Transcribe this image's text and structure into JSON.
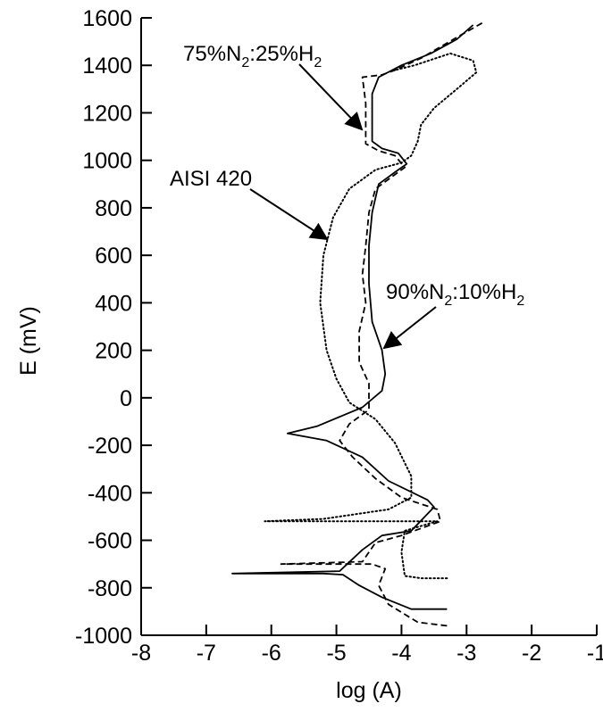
{
  "chart_data": {
    "type": "line",
    "title": "",
    "xlabel": "log (A)",
    "ylabel": "E (mV)",
    "xlim": [
      -8,
      -1
    ],
    "ylim": [
      -1000,
      1600
    ],
    "x_ticks": [
      "-8",
      "-7",
      "-6",
      "-5",
      "-4",
      "-3",
      "-2",
      "-1"
    ],
    "y_ticks": [
      "-1000",
      "-800",
      "-600",
      "-400",
      "-200",
      "0",
      "200",
      "400",
      "600",
      "800",
      "1000",
      "1200",
      "1400",
      "1600"
    ],
    "grid": false,
    "legend": "none",
    "series": [
      {
        "name": "AISI 420",
        "style": "dotted",
        "points": [
          [
            -3.3,
            -760
          ],
          [
            -3.7,
            -760
          ],
          [
            -3.95,
            -750
          ],
          [
            -4.0,
            -650
          ],
          [
            -3.95,
            -560
          ],
          [
            -3.45,
            -520
          ],
          [
            -4.7,
            -520
          ],
          [
            -6.1,
            -520
          ],
          [
            -5.2,
            -510
          ],
          [
            -4.2,
            -470
          ],
          [
            -3.85,
            -420
          ],
          [
            -3.85,
            -330
          ],
          [
            -4.1,
            -190
          ],
          [
            -4.4,
            -90
          ],
          [
            -4.8,
            -20
          ],
          [
            -5.0,
            80
          ],
          [
            -5.15,
            200
          ],
          [
            -5.25,
            400
          ],
          [
            -5.2,
            600
          ],
          [
            -5.05,
            760
          ],
          [
            -4.8,
            880
          ],
          [
            -4.4,
            960
          ],
          [
            -4.0,
            990
          ],
          [
            -3.85,
            1020
          ],
          [
            -3.75,
            1080
          ],
          [
            -3.7,
            1150
          ],
          [
            -3.5,
            1220
          ],
          [
            -3.15,
            1300
          ],
          [
            -2.85,
            1370
          ],
          [
            -2.9,
            1420
          ],
          [
            -3.25,
            1450
          ],
          [
            -3.8,
            1400
          ],
          [
            -4.1,
            1380
          ]
        ]
      },
      {
        "name": "75%N2:25%H2",
        "style": "dashed",
        "points": [
          [
            -3.3,
            -960
          ],
          [
            -3.75,
            -945
          ],
          [
            -4.2,
            -870
          ],
          [
            -4.35,
            -790
          ],
          [
            -4.25,
            -720
          ],
          [
            -4.45,
            -700
          ],
          [
            -5.85,
            -700
          ],
          [
            -4.6,
            -690
          ],
          [
            -4.4,
            -610
          ],
          [
            -4.0,
            -580
          ],
          [
            -3.4,
            -520
          ],
          [
            -3.45,
            -470
          ],
          [
            -4.0,
            -420
          ],
          [
            -4.4,
            -340
          ],
          [
            -4.75,
            -250
          ],
          [
            -4.95,
            -180
          ],
          [
            -4.8,
            -110
          ],
          [
            -4.5,
            -50
          ],
          [
            -4.5,
            60
          ],
          [
            -4.65,
            150
          ],
          [
            -4.65,
            280
          ],
          [
            -4.55,
            400
          ],
          [
            -4.6,
            520
          ],
          [
            -4.55,
            640
          ],
          [
            -4.5,
            780
          ],
          [
            -4.4,
            880
          ],
          [
            -4.15,
            930
          ],
          [
            -3.95,
            970
          ],
          [
            -4.1,
            1020
          ],
          [
            -4.35,
            1040
          ],
          [
            -4.55,
            1070
          ],
          [
            -4.55,
            1240
          ],
          [
            -4.6,
            1350
          ],
          [
            -4.3,
            1360
          ],
          [
            -4.1,
            1380
          ],
          [
            -3.7,
            1430
          ],
          [
            -3.2,
            1510
          ],
          [
            -2.75,
            1580
          ]
        ]
      },
      {
        "name": "90%N2:10%H2",
        "style": "solid",
        "points": [
          [
            -3.3,
            -890
          ],
          [
            -3.85,
            -890
          ],
          [
            -4.3,
            -840
          ],
          [
            -4.65,
            -790
          ],
          [
            -4.9,
            -745
          ],
          [
            -5.2,
            -740
          ],
          [
            -6.6,
            -740
          ],
          [
            -4.95,
            -730
          ],
          [
            -4.6,
            -640
          ],
          [
            -4.3,
            -580
          ],
          [
            -3.85,
            -560
          ],
          [
            -3.5,
            -460
          ],
          [
            -3.6,
            -430
          ],
          [
            -4.2,
            -350
          ],
          [
            -4.6,
            -250
          ],
          [
            -5.15,
            -180
          ],
          [
            -5.75,
            -150
          ],
          [
            -5.3,
            -120
          ],
          [
            -4.6,
            -40
          ],
          [
            -4.3,
            30
          ],
          [
            -4.25,
            100
          ],
          [
            -4.3,
            200
          ],
          [
            -4.45,
            320
          ],
          [
            -4.5,
            480
          ],
          [
            -4.5,
            640
          ],
          [
            -4.45,
            780
          ],
          [
            -4.35,
            900
          ],
          [
            -4.1,
            950
          ],
          [
            -3.92,
            985
          ],
          [
            -4.05,
            1030
          ],
          [
            -4.3,
            1050
          ],
          [
            -4.45,
            1080
          ],
          [
            -4.45,
            1280
          ],
          [
            -4.35,
            1350
          ],
          [
            -4.0,
            1400
          ],
          [
            -3.55,
            1450
          ],
          [
            -3.15,
            1510
          ],
          [
            -2.9,
            1570
          ]
        ]
      }
    ],
    "annotations": [
      {
        "text": "75%N",
        "sub1": "2",
        "mid": ":25%H",
        "sub2": "2"
      },
      {
        "text": "AISI 420"
      },
      {
        "text": "90%N",
        "sub1": "2",
        "mid": ":10%H",
        "sub2": "2"
      }
    ]
  }
}
